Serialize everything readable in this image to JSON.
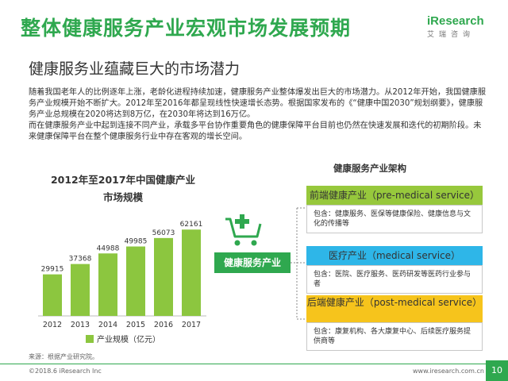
{
  "header": {
    "title": "整体健康服务产业宏观市场发展预期",
    "subtitle": "健康服务业蕴藏巨大的市场潜力",
    "logo_brand": "iResearch",
    "logo_cn": "艾瑞咨询"
  },
  "body": {
    "paragraphs": [
      "随着我国老年人的比例逐年上涨，老龄化进程持续加速，健康服务产业整体爆发出巨大的市场潜力。从2012年开始，我国健康服务产业规模开始不断扩大。2012年至2016年都呈现线性快速增长态势。根据国家发布的《“健康中国2030”规划纲要》，健康服务产业总规模在2020将达到8万亿，在2030年将达到16万亿。",
      "而在健康服务产业中起到连接不同产业，承载多平台协作重要角色的健康保障平台目前也仍然在快速发展和迭代的初期阶段。未来健康保障平台在整个健康服务行业中存在客观的增长空间。"
    ]
  },
  "chart_data": {
    "type": "bar",
    "title_line1": "2012年至2017年中国健康产业",
    "title_line2": "市场规模",
    "categories": [
      "2012",
      "2013",
      "2014",
      "2015",
      "2016",
      "2017"
    ],
    "values": [
      29915,
      37368,
      44988,
      49985,
      56073,
      62161
    ],
    "legend": "产业规模（亿元）",
    "bar_color": "#8cc63f"
  },
  "architecture": {
    "title": "健康服务产业架构",
    "core_label": "健康服务产业",
    "boxes": [
      {
        "header": "前端健康产业（pre-medical service）",
        "body": "包含：健康服务、医保等健康保险、健康信息与文化的传播等",
        "color": "#97c83c"
      },
      {
        "header": "医疗产业（medical service）",
        "body": "包含：医院、医疗服务、医药研发等医药行业参与者",
        "color": "#2eb6e8"
      },
      {
        "header": "后端健康产业（post-medical service）",
        "body": "包含：康复机构、各大康复中心、后续医疗服务提供商等",
        "color": "#f6c41c"
      }
    ]
  },
  "footer": {
    "source": "来源：根据产业研究院。",
    "copyright": "©2018.6 iResearch Inc",
    "website": "www.iresearch.com.cn",
    "page_number": "10"
  }
}
